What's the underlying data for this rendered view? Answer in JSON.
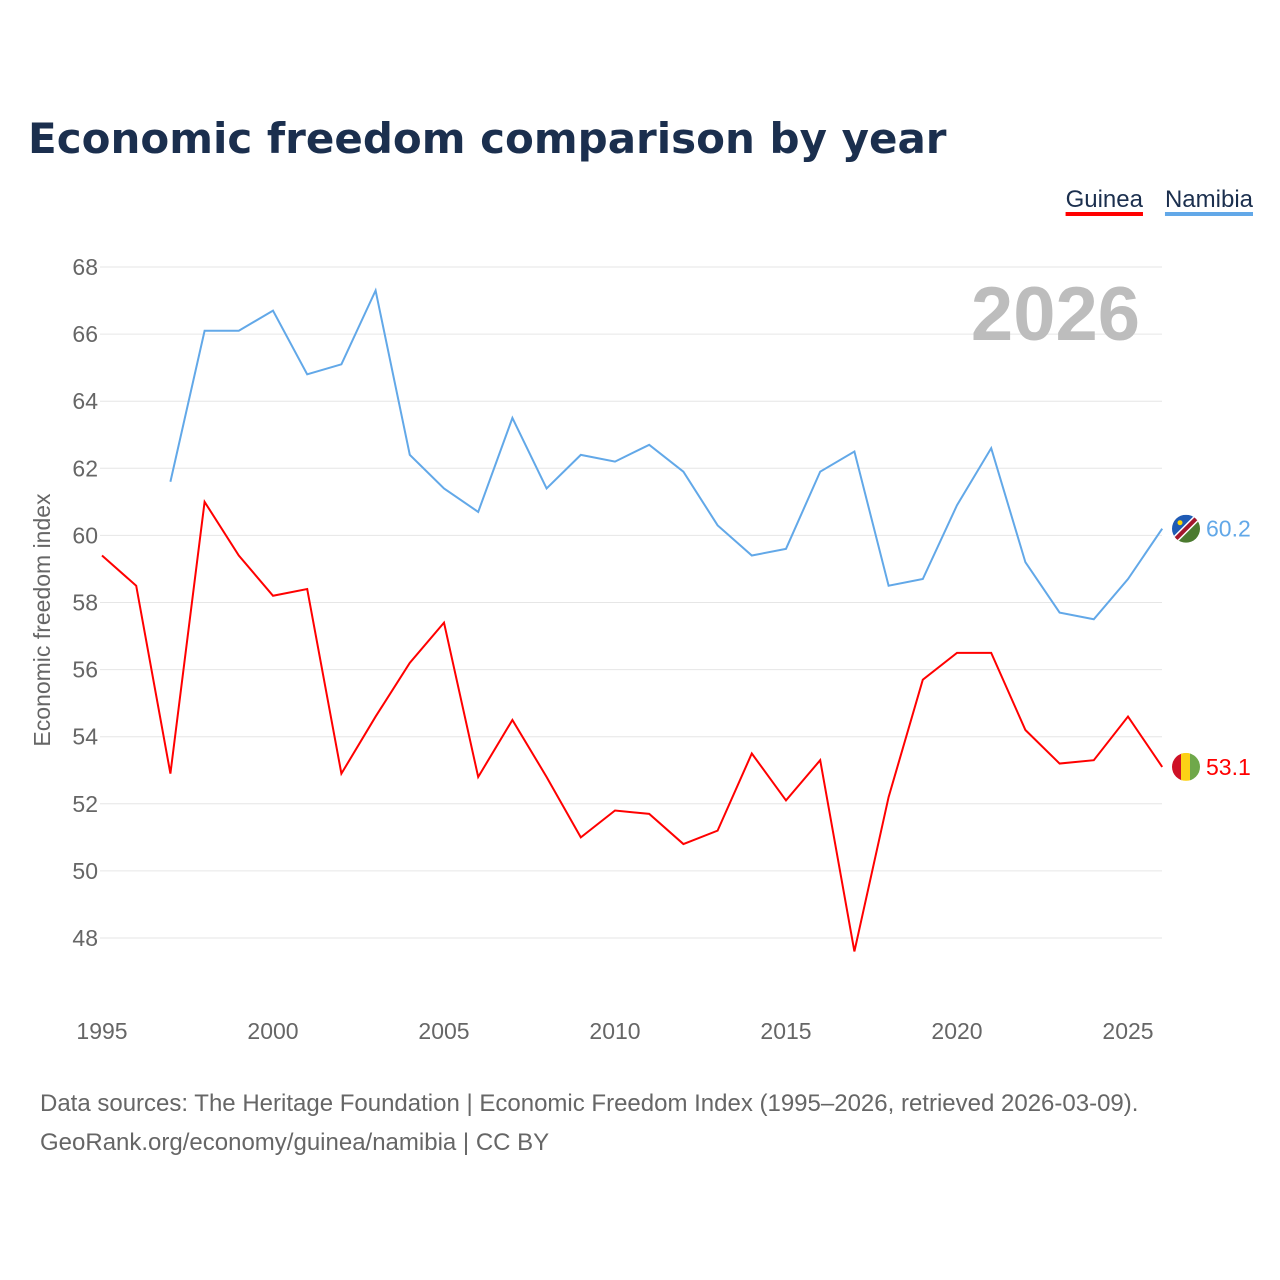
{
  "chart_data": {
    "type": "line",
    "title": "Economic freedom comparison by year",
    "xlabel": "",
    "ylabel": "Economic freedom index",
    "watermark_year": "2026",
    "xlim": [
      1995,
      2026
    ],
    "ylim": [
      46.1,
      68.4
    ],
    "yticks": [
      48,
      50,
      52,
      54,
      56,
      58,
      60,
      62,
      64,
      66,
      68
    ],
    "xticks": [
      1995,
      2000,
      2005,
      2010,
      2015,
      2020,
      2025
    ],
    "grid": true,
    "legend_position": "top-right",
    "series": [
      {
        "name": "Guinea",
        "color": "#ff0000",
        "end_label": "53.1",
        "x": [
          1995,
          1996,
          1997,
          1998,
          1999,
          2000,
          2001,
          2002,
          2003,
          2004,
          2005,
          2006,
          2007,
          2008,
          2009,
          2010,
          2011,
          2012,
          2013,
          2014,
          2015,
          2016,
          2017,
          2018,
          2019,
          2020,
          2021,
          2022,
          2023,
          2024,
          2025,
          2026
        ],
        "values": [
          59.4,
          58.5,
          52.9,
          61.0,
          59.4,
          58.2,
          58.4,
          52.9,
          54.6,
          56.2,
          57.4,
          52.8,
          54.5,
          52.8,
          51.0,
          51.8,
          51.7,
          50.8,
          51.2,
          53.5,
          52.1,
          53.3,
          47.6,
          52.2,
          55.7,
          56.5,
          56.5,
          54.2,
          53.2,
          53.3,
          54.6,
          53.1
        ]
      },
      {
        "name": "Namibia",
        "color": "#62a8e8",
        "end_label": "60.2",
        "x": [
          1997,
          1998,
          1999,
          2000,
          2001,
          2002,
          2003,
          2004,
          2005,
          2006,
          2007,
          2008,
          2009,
          2010,
          2011,
          2012,
          2013,
          2014,
          2015,
          2016,
          2017,
          2018,
          2019,
          2020,
          2021,
          2022,
          2023,
          2024,
          2025,
          2026
        ],
        "values": [
          61.6,
          66.1,
          66.1,
          66.7,
          64.8,
          65.1,
          67.3,
          62.4,
          61.4,
          60.7,
          63.5,
          61.4,
          62.4,
          62.2,
          62.7,
          61.9,
          60.3,
          59.4,
          59.6,
          61.9,
          62.5,
          58.5,
          58.7,
          60.9,
          62.6,
          59.2,
          57.7,
          57.5,
          58.7,
          60.2
        ]
      }
    ]
  },
  "footer": {
    "line1": "Data sources: The Heritage Foundation | Economic Freedom Index (1995–2026, retrieved 2026-03-09).",
    "line2": "GeoRank.org/economy/guinea/namibia | CC BY"
  }
}
